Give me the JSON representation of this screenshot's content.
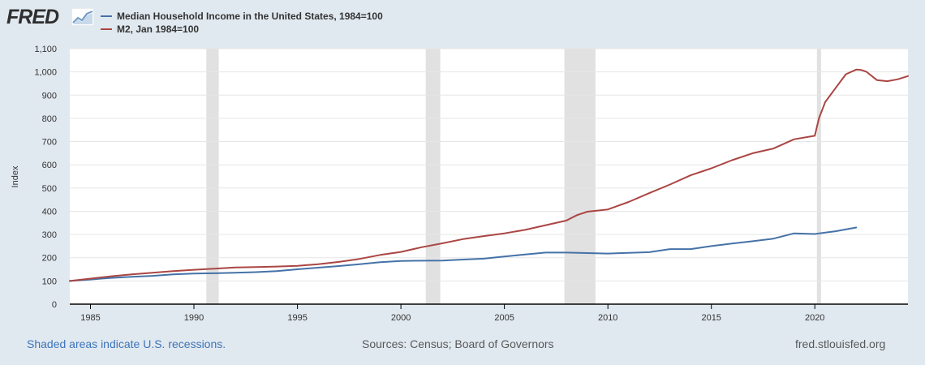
{
  "logo": {
    "text": "FRED"
  },
  "colors": {
    "page_bg": "#e1e9f0",
    "plot_bg": "#ffffff",
    "grid": "#e6e6e6",
    "recession": "#e1e1e1",
    "axis": "#000000",
    "income": "#4572a7",
    "m2": "#aa4643"
  },
  "chart_data": {
    "type": "line",
    "ylabel": "Index",
    "ylim": [
      0,
      1100
    ],
    "yticks": [
      0,
      100,
      200,
      300,
      400,
      500,
      600,
      700,
      800,
      900,
      1000,
      1100
    ],
    "ytick_labels": [
      "0",
      "100",
      "200",
      "300",
      "400",
      "500",
      "600",
      "700",
      "800",
      "900",
      "1,000",
      "1,100"
    ],
    "xlim": [
      1984.0,
      2024.5
    ],
    "xticks": [
      1985,
      1990,
      1995,
      2000,
      2005,
      2010,
      2015,
      2020
    ],
    "xtick_labels": [
      "1985",
      "1990",
      "1995",
      "2000",
      "2005",
      "2010",
      "2015",
      "2020"
    ],
    "grid": true,
    "recessions": [
      [
        1990.6,
        1991.2
      ],
      [
        2001.2,
        2001.9
      ],
      [
        2007.9,
        2009.4
      ],
      [
        2020.1,
        2020.3
      ]
    ],
    "series": [
      {
        "name": "Median Household Income in the United States, 1984=100",
        "color": "#4572a7",
        "x": [
          1984,
          1985,
          1986,
          1987,
          1988,
          1989,
          1990,
          1991,
          1992,
          1993,
          1994,
          1995,
          1996,
          1997,
          1998,
          1999,
          2000,
          2001,
          2002,
          2003,
          2004,
          2005,
          2006,
          2007,
          2008,
          2009,
          2010,
          2011,
          2012,
          2013,
          2014,
          2015,
          2016,
          2017,
          2018,
          2019,
          2020,
          2021,
          2022
        ],
        "y": [
          100,
          106,
          113,
          118,
          122,
          128,
          132,
          133,
          135,
          138,
          142,
          150,
          157,
          164,
          172,
          181,
          186,
          187,
          188,
          192,
          196,
          205,
          214,
          222,
          222,
          220,
          218,
          221,
          224,
          237,
          237,
          250,
          261,
          271,
          282,
          305,
          302,
          314,
          330
        ]
      },
      {
        "name": "M2, Jan 1984=100",
        "color": "#aa4643",
        "x": [
          1984,
          1985,
          1986,
          1987,
          1988,
          1989,
          1990,
          1991,
          1992,
          1993,
          1994,
          1995,
          1996,
          1997,
          1998,
          1999,
          2000,
          2001,
          2002,
          2003,
          2004,
          2005,
          2006,
          2007,
          2008,
          2008.5,
          2009,
          2010,
          2011,
          2012,
          2013,
          2014,
          2015,
          2016,
          2017,
          2018,
          2019,
          2020,
          2020.2,
          2020.5,
          2021,
          2021.5,
          2022,
          2022.25,
          2022.5,
          2023,
          2023.5,
          2024,
          2024.5
        ],
        "y": [
          100,
          110,
          120,
          128,
          135,
          142,
          148,
          153,
          158,
          160,
          162,
          165,
          172,
          182,
          195,
          212,
          225,
          245,
          262,
          280,
          293,
          305,
          320,
          340,
          360,
          383,
          398,
          408,
          440,
          478,
          515,
          555,
          585,
          620,
          650,
          670,
          710,
          725,
          800,
          870,
          930,
          990,
          1010,
          1008,
          1000,
          965,
          960,
          968,
          982
        ]
      }
    ]
  },
  "footer": {
    "recession_note": "Shaded areas indicate U.S. recessions.",
    "sources": "Sources: Census; Board of Governors",
    "url": "fred.stlouisfed.org"
  }
}
